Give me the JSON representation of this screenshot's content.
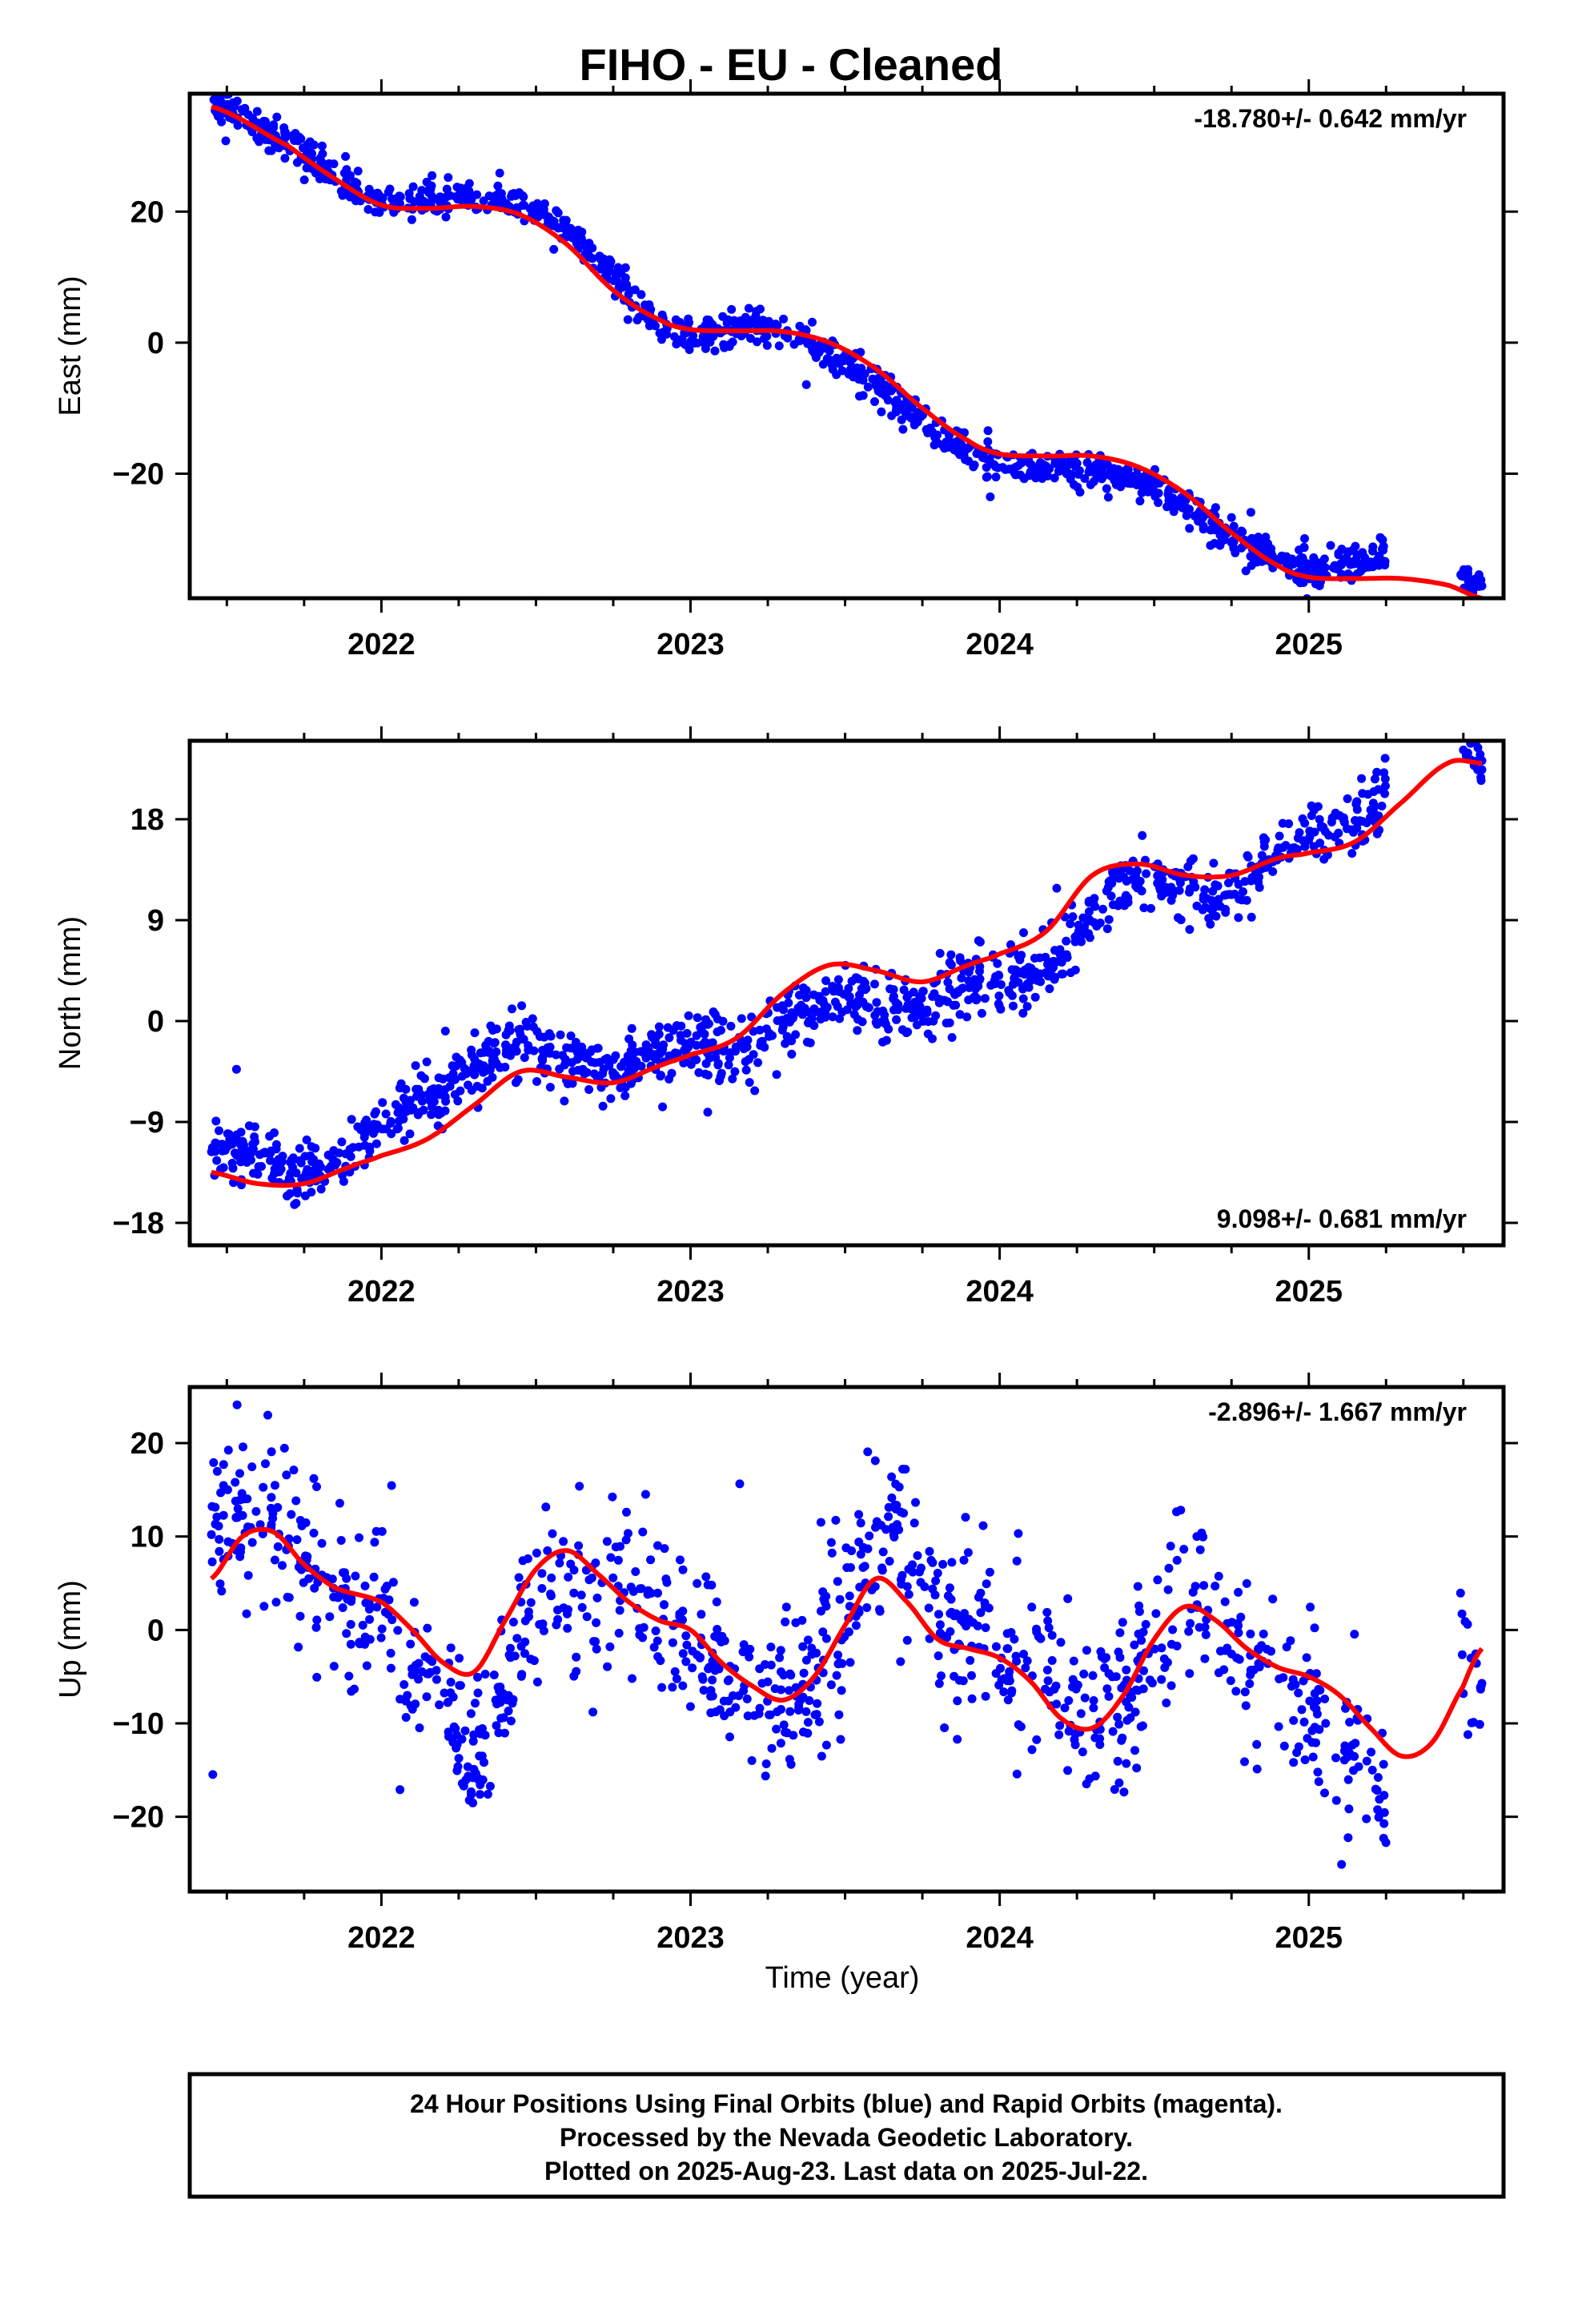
{
  "title": "FIHO  - EU - Cleaned",
  "xlabel": "Time (year)",
  "caption": {
    "line1": "24 Hour Positions Using Final Orbits (blue) and Rapid Orbits (magenta).",
    "line2": "Processed by the Nevada Geodetic Laboratory.",
    "line3": "Plotted on 2025-Aug-23. Last data on 2025-Jul-22."
  },
  "colors": {
    "data": "#0000ff",
    "fit": "#ff0000",
    "frame": "#000000"
  },
  "chart_data": [
    {
      "type": "scatter",
      "name": "east",
      "ylabel": "East (mm)",
      "rate": "-18.780+/- 0.642 mm/yr",
      "rate_position": "top-right",
      "xlim": [
        2021.38,
        2025.63
      ],
      "ylim": [
        -39,
        38
      ],
      "xticks": [
        2022,
        2023,
        2024,
        2025
      ],
      "yticks": [
        -20,
        0,
        20
      ],
      "grid": false,
      "data_x_range": [
        2021.45,
        2025.56
      ],
      "data_gap": [
        2025.25,
        2025.49
      ],
      "fit_curve": {
        "x": [
          2021.45,
          2021.7,
          2021.85,
          2022.0,
          2022.15,
          2022.3,
          2022.45,
          2022.6,
          2022.75,
          2022.9,
          2023.0,
          2023.15,
          2023.3,
          2023.45,
          2023.6,
          2023.75,
          2023.9,
          2024.0,
          2024.15,
          2024.3,
          2024.45,
          2024.6,
          2024.75,
          2024.9,
          2025.0,
          2025.15,
          2025.3,
          2025.45,
          2025.56
        ],
        "y": [
          36,
          30,
          25,
          21,
          20.5,
          20.8,
          19.5,
          15,
          8,
          3.5,
          2,
          1.8,
          1.7,
          0,
          -4,
          -10,
          -15,
          -17,
          -17.3,
          -17.3,
          -19,
          -23,
          -29,
          -34,
          -35.8,
          -36,
          -36,
          -37,
          -39
        ]
      },
      "trend_anchors": {
        "x": [
          2021.45,
          2021.6,
          2021.75,
          2021.9,
          2022.0,
          2022.15,
          2022.3,
          2022.45,
          2022.6,
          2022.75,
          2022.9,
          2023.0,
          2023.15,
          2023.3,
          2023.45,
          2023.6,
          2023.75,
          2023.9,
          2024.0,
          2024.15,
          2024.3,
          2024.45,
          2024.6,
          2024.75,
          2024.9,
          2025.0,
          2025.1,
          2025.25,
          2025.5,
          2025.56
        ],
        "y": [
          36,
          33,
          29,
          24,
          21.5,
          22,
          22,
          21,
          17,
          10,
          3,
          1.5,
          2,
          1.5,
          -1,
          -6,
          -12,
          -16.5,
          -18.5,
          -18.5,
          -19.5,
          -21,
          -25,
          -30,
          -33,
          -34.5,
          -34,
          -33,
          -35.5,
          -37
        ]
      },
      "scatter_sigma": 1.3,
      "points_shown": 1180
    },
    {
      "type": "scatter",
      "name": "north",
      "ylabel": "North (mm)",
      "rate": "9.098+/- 0.681 mm/yr",
      "rate_position": "bottom-right",
      "xlim": [
        2021.38,
        2025.63
      ],
      "ylim": [
        -20,
        25
      ],
      "xticks": [
        2022,
        2023,
        2024,
        2025
      ],
      "yticks": [
        -18,
        -9,
        0,
        9,
        18
      ],
      "grid": false,
      "data_x_range": [
        2021.45,
        2025.56
      ],
      "data_gap": [
        2025.25,
        2025.49
      ],
      "fit_curve": {
        "x": [
          2021.45,
          2021.6,
          2021.75,
          2021.9,
          2022.0,
          2022.15,
          2022.3,
          2022.45,
          2022.6,
          2022.75,
          2022.9,
          2023.0,
          2023.15,
          2023.3,
          2023.45,
          2023.6,
          2023.75,
          2023.9,
          2024.0,
          2024.15,
          2024.3,
          2024.45,
          2024.6,
          2024.75,
          2024.9,
          2025.0,
          2025.15,
          2025.3,
          2025.45,
          2025.56
        ],
        "y": [
          -13.5,
          -14.5,
          -14.5,
          -13,
          -12,
          -10.5,
          -7.5,
          -4.5,
          -5,
          -5.5,
          -4,
          -3,
          -1.5,
          2.5,
          5,
          4.5,
          3.5,
          5,
          6,
          8,
          13,
          14,
          13,
          13,
          14.5,
          15,
          16,
          19.5,
          23,
          23
        ]
      },
      "trend_anchors": {
        "x": [
          2021.45,
          2021.6,
          2021.75,
          2021.9,
          2022.0,
          2022.15,
          2022.3,
          2022.45,
          2022.6,
          2022.75,
          2022.9,
          2023.0,
          2023.15,
          2023.3,
          2023.45,
          2023.6,
          2023.75,
          2023.9,
          2024.0,
          2024.15,
          2024.3,
          2024.45,
          2024.6,
          2024.75,
          2024.9,
          2025.0,
          2025.15,
          2025.25,
          2025.5,
          2025.56
        ],
        "y": [
          -11,
          -12,
          -13.5,
          -11.5,
          -9,
          -7,
          -4,
          -1.5,
          -3.5,
          -4,
          -3,
          -2,
          -3,
          0,
          2,
          1.5,
          1,
          3,
          3.5,
          5,
          9.5,
          13,
          12,
          11.5,
          15,
          16.5,
          18,
          20,
          24,
          23
        ]
      },
      "scatter_sigma": 1.4,
      "points_shown": 1180
    },
    {
      "type": "scatter",
      "name": "up",
      "ylabel": "Up (mm)",
      "rate": "-2.896+/- 1.667 mm/yr",
      "rate_position": "top-right",
      "xlim": [
        2021.38,
        2025.63
      ],
      "ylim": [
        -28,
        26
      ],
      "xticks": [
        2022,
        2023,
        2024,
        2025
      ],
      "yticks": [
        -20,
        -10,
        0,
        10,
        20
      ],
      "grid": false,
      "data_x_range": [
        2021.45,
        2025.56
      ],
      "data_gap": [
        2025.25,
        2025.49
      ],
      "fit_curve": {
        "x": [
          2021.45,
          2021.55,
          2021.65,
          2021.75,
          2021.85,
          2022.0,
          2022.1,
          2022.2,
          2022.3,
          2022.4,
          2022.5,
          2022.6,
          2022.7,
          2022.8,
          2022.9,
          2023.0,
          2023.1,
          2023.2,
          2023.3,
          2023.4,
          2023.5,
          2023.6,
          2023.7,
          2023.8,
          2023.9,
          2024.0,
          2024.1,
          2024.2,
          2024.3,
          2024.4,
          2024.5,
          2024.6,
          2024.7,
          2024.8,
          2024.9,
          2025.0,
          2025.1,
          2025.2,
          2025.3,
          2025.4,
          2025.5,
          2025.56
        ],
        "y": [
          5.5,
          10,
          10.5,
          7,
          4.5,
          3,
          0,
          -3.5,
          -4.5,
          1,
          6.5,
          8.5,
          6,
          3,
          1,
          0,
          -3.5,
          -6,
          -7.5,
          -5,
          0.5,
          5.5,
          3,
          -1,
          -2,
          -3,
          -5.5,
          -9.5,
          -10.5,
          -7,
          -1,
          2.5,
          1,
          -2,
          -4,
          -5,
          -7,
          -10.5,
          -13.5,
          -12,
          -6,
          -2
        ]
      },
      "trend_anchors": {
        "x": [
          2021.45,
          2021.55,
          2021.65,
          2021.75,
          2021.85,
          2022.0,
          2022.1,
          2022.2,
          2022.3,
          2022.4,
          2022.5,
          2022.6,
          2022.7,
          2022.8,
          2022.9,
          2023.0,
          2023.1,
          2023.2,
          2023.3,
          2023.4,
          2023.5,
          2023.6,
          2023.7,
          2023.8,
          2023.9,
          2024.0,
          2024.1,
          2024.2,
          2024.3,
          2024.4,
          2024.5,
          2024.6,
          2024.7,
          2024.8,
          2024.9,
          2025.0,
          2025.1,
          2025.2,
          2025.25,
          2025.5,
          2025.56
        ],
        "y": [
          10,
          12,
          10.5,
          7,
          4.5,
          0,
          -3,
          -6,
          -14,
          -5,
          3,
          4,
          2,
          5,
          1,
          -2,
          -4,
          -7,
          -8,
          -4,
          2,
          9,
          8,
          2,
          -1,
          -2,
          -4,
          -7,
          -9,
          -8,
          -2,
          3,
          1,
          -3,
          -6,
          -9,
          -11,
          -15,
          -19,
          -6,
          -7
        ]
      },
      "scatter_sigma": 4.5,
      "points_shown": 1050
    }
  ]
}
